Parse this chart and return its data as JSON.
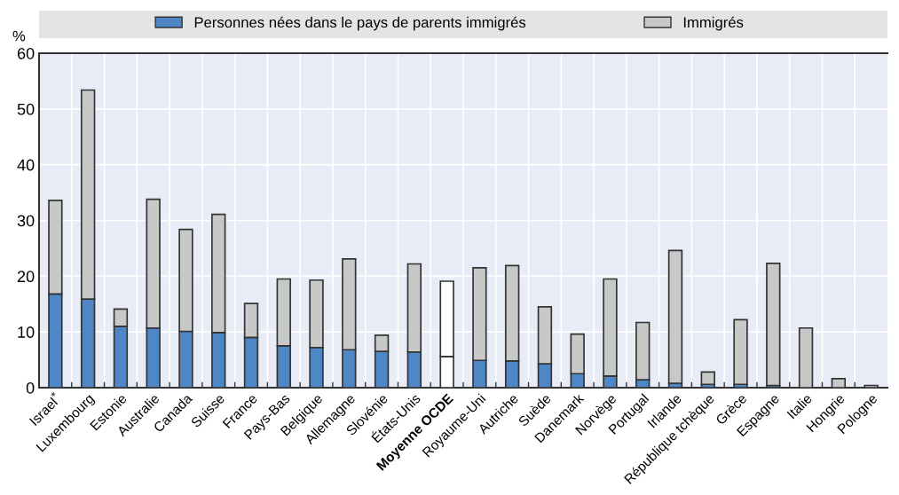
{
  "chart_data": {
    "type": "bar",
    "stacked": true,
    "ylabel": "%",
    "categories": [
      "Israel$^{*}$",
      "Luxembourg",
      "Estonie",
      "Australie",
      "Canada",
      "Suisse",
      "France",
      "Pays-Bas",
      "Belgique",
      "Allemagne",
      "Slovénie",
      "États-Unis",
      "Moyenne OCDE",
      "Royaume-Uni",
      "Autriche",
      "Suède",
      "Danemark",
      "Norvège",
      "Portugal",
      "Irlande",
      "République tchèque",
      "Grèce",
      "Espagne",
      "Italie",
      "Hongrie",
      "Pologne"
    ],
    "series": [
      {
        "name": "Personnes nées dans le pays de parents immigrés",
        "color": "#4e86c6",
        "colors": [
          "#4e86c6",
          "#4e86c6",
          "#4e86c6",
          "#4e86c6",
          "#4e86c6",
          "#4e86c6",
          "#4e86c6",
          "#4e86c6",
          "#4e86c6",
          "#4e86c6",
          "#4e86c6",
          "#4e86c6",
          "#ffffff",
          "#4e86c6",
          "#4e86c6",
          "#4e86c6",
          "#4e86c6",
          "#4e86c6",
          "#4e86c6",
          "#4e86c6",
          "#4e86c6",
          "#4e86c6",
          "#4e86c6",
          "#4e86c6",
          "#4e86c6",
          "#4e86c6"
        ],
        "values": [
          16.8,
          15.9,
          11.0,
          10.7,
          10.1,
          9.9,
          9.0,
          7.5,
          7.2,
          6.8,
          6.5,
          6.4,
          5.6,
          4.9,
          4.8,
          4.3,
          2.5,
          2.1,
          1.4,
          0.8,
          0.6,
          0.6,
          0.4,
          null,
          null,
          null
        ]
      },
      {
        "name": "Immigrés",
        "color": "#c8c8c8",
        "colors": [
          "#c8c8c8",
          "#c8c8c8",
          "#c8c8c8",
          "#c8c8c8",
          "#c8c8c8",
          "#c8c8c8",
          "#c8c8c8",
          "#c8c8c8",
          "#c8c8c8",
          "#c8c8c8",
          "#c8c8c8",
          "#c8c8c8",
          "#ffffff",
          "#c8c8c8",
          "#c8c8c8",
          "#c8c8c8",
          "#c8c8c8",
          "#c8c8c8",
          "#c8c8c8",
          "#c8c8c8",
          "#c8c8c8",
          "#c8c8c8",
          "#c8c8c8",
          "#c8c8c8",
          "#c8c8c8",
          "#c8c8c8"
        ],
        "values": [
          16.8,
          37.5,
          3.1,
          23.1,
          18.3,
          21.2,
          6.1,
          12.0,
          12.1,
          16.3,
          2.9,
          15.8,
          13.5,
          16.6,
          17.1,
          10.2,
          7.1,
          17.4,
          10.3,
          23.8,
          2.2,
          11.6,
          21.9,
          10.7,
          1.6,
          0.4
        ]
      }
    ],
    "ylim": [
      0,
      60
    ],
    "yticks": [
      0,
      10,
      20,
      30,
      40,
      50,
      60
    ],
    "grid": true,
    "legend": "top"
  }
}
